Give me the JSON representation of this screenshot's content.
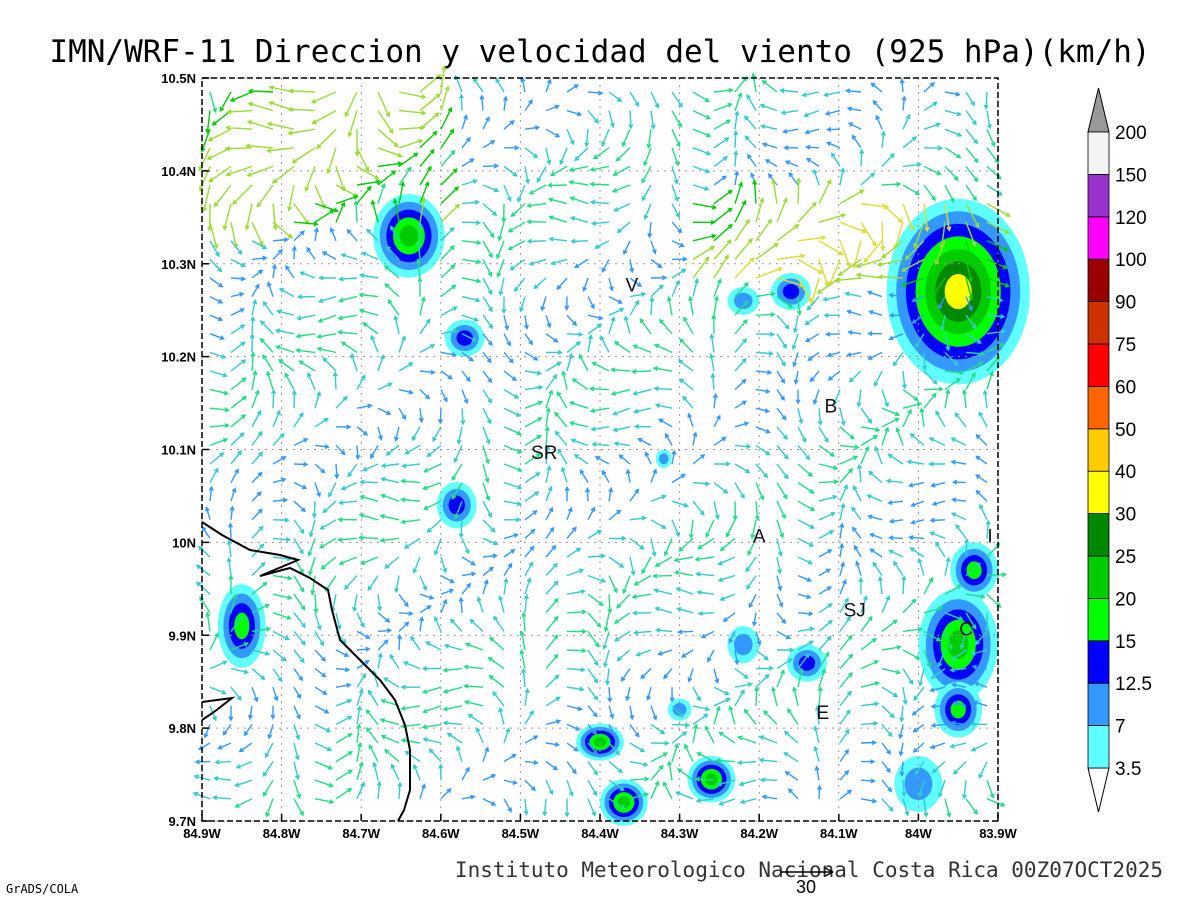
{
  "title": "IMN/WRF-11 Direccion y velocidad del viento (925 hPa)(km/h)",
  "credit": "Instituto Meteorologico Nacional Costa Rica 00Z07OCT2025",
  "software": "GrADS/COLA",
  "reference_vector": {
    "label": "30",
    "value": 30
  },
  "axes": {
    "lon_range": [
      -84.9,
      -83.9
    ],
    "lat_range": [
      9.7,
      10.5
    ],
    "lon_ticks": [
      {
        "value": -84.9,
        "label": "84.9W"
      },
      {
        "value": -84.8,
        "label": "84.8W"
      },
      {
        "value": -84.7,
        "label": "84.7W"
      },
      {
        "value": -84.6,
        "label": "84.6W"
      },
      {
        "value": -84.5,
        "label": "84.5W"
      },
      {
        "value": -84.4,
        "label": "84.4W"
      },
      {
        "value": -84.3,
        "label": "84.3W"
      },
      {
        "value": -84.2,
        "label": "84.2W"
      },
      {
        "value": -84.1,
        "label": "84.1W"
      },
      {
        "value": -84.0,
        "label": "84W"
      },
      {
        "value": -83.9,
        "label": "83.9W"
      }
    ],
    "lat_ticks": [
      {
        "value": 9.7,
        "label": "9.7N"
      },
      {
        "value": 9.8,
        "label": "9.8N"
      },
      {
        "value": 9.9,
        "label": "9.9N"
      },
      {
        "value": 10.0,
        "label": "10N"
      },
      {
        "value": 10.1,
        "label": "10.1N"
      },
      {
        "value": 10.2,
        "label": "10.2N"
      },
      {
        "value": 10.3,
        "label": "10.3N"
      },
      {
        "value": 10.4,
        "label": "10.4N"
      },
      {
        "value": 10.5,
        "label": "10.5N"
      }
    ],
    "grid": true
  },
  "colorbar": {
    "levels": [
      {
        "label": "3.5",
        "color": "#5fffff"
      },
      {
        "label": "7",
        "color": "#3399ff"
      },
      {
        "label": "12.5",
        "color": "#0000ff"
      },
      {
        "label": "15",
        "color": "#00ff00"
      },
      {
        "label": "20",
        "color": "#00cc00"
      },
      {
        "label": "25",
        "color": "#008800"
      },
      {
        "label": "30",
        "color": "#ffff00"
      },
      {
        "label": "40",
        "color": "#ffcc00"
      },
      {
        "label": "50",
        "color": "#ff6600"
      },
      {
        "label": "60",
        "color": "#ff0000"
      },
      {
        "label": "75",
        "color": "#cc3300"
      },
      {
        "label": "90",
        "color": "#990000"
      },
      {
        "label": "100",
        "color": "#ff00ff"
      },
      {
        "label": "120",
        "color": "#9933cc"
      },
      {
        "label": "150",
        "color": "#f4f4f4"
      },
      {
        "label": "200",
        "color": "#999999"
      }
    ]
  },
  "places": [
    {
      "label": "V",
      "lon": -84.36,
      "lat": 10.27
    },
    {
      "label": "B",
      "lon": -84.11,
      "lat": 10.14
    },
    {
      "label": "SR",
      "lon": -84.47,
      "lat": 10.09
    },
    {
      "label": "A",
      "lon": -84.2,
      "lat": 10.0
    },
    {
      "label": "SJ",
      "lon": -84.08,
      "lat": 9.92
    },
    {
      "label": "C",
      "lon": -83.94,
      "lat": 9.9
    },
    {
      "label": "E",
      "lon": -84.12,
      "lat": 9.81
    },
    {
      "label": "I",
      "lon": -83.91,
      "lat": 10.0
    }
  ],
  "chart_data": {
    "type": "heatmap",
    "description_units": "km/h",
    "speed_cells": [
      {
        "lon": -84.64,
        "lat": 10.33,
        "rx": 0.045,
        "ry": 0.045,
        "level": 4
      },
      {
        "lon": -84.57,
        "lat": 10.22,
        "rx": 0.025,
        "ry": 0.02,
        "level": 2
      },
      {
        "lon": -84.58,
        "lat": 10.04,
        "rx": 0.025,
        "ry": 0.025,
        "level": 2
      },
      {
        "lon": -84.85,
        "lat": 9.91,
        "rx": 0.03,
        "ry": 0.045,
        "level": 3
      },
      {
        "lon": -84.4,
        "lat": 9.785,
        "rx": 0.03,
        "ry": 0.02,
        "level": 4
      },
      {
        "lon": -84.37,
        "lat": 9.72,
        "rx": 0.03,
        "ry": 0.025,
        "level": 4
      },
      {
        "lon": -84.26,
        "lat": 9.745,
        "rx": 0.03,
        "ry": 0.025,
        "level": 4
      },
      {
        "lon": -84.14,
        "lat": 9.87,
        "rx": 0.025,
        "ry": 0.02,
        "level": 2
      },
      {
        "lon": -84.16,
        "lat": 10.27,
        "rx": 0.025,
        "ry": 0.02,
        "level": 2
      },
      {
        "lon": -83.95,
        "lat": 9.89,
        "rx": 0.05,
        "ry": 0.06,
        "level": 4
      },
      {
        "lon": -83.95,
        "lat": 9.82,
        "rx": 0.03,
        "ry": 0.03,
        "level": 3
      },
      {
        "lon": -83.93,
        "lat": 9.97,
        "rx": 0.03,
        "ry": 0.03,
        "level": 3
      },
      {
        "lon": -83.95,
        "lat": 10.27,
        "rx": 0.09,
        "ry": 0.1,
        "level": 6
      },
      {
        "lon": -84.0,
        "lat": 9.74,
        "rx": 0.03,
        "ry": 0.03,
        "level": 1
      },
      {
        "lon": -84.22,
        "lat": 9.89,
        "rx": 0.02,
        "ry": 0.02,
        "level": 1
      },
      {
        "lon": -84.22,
        "lat": 10.26,
        "rx": 0.02,
        "ry": 0.015,
        "level": 1
      },
      {
        "lon": -84.3,
        "lat": 9.82,
        "rx": 0.015,
        "ry": 0.012,
        "level": 1
      },
      {
        "lon": -84.32,
        "lat": 10.09,
        "rx": 0.01,
        "ry": 0.01,
        "level": 1
      }
    ]
  }
}
